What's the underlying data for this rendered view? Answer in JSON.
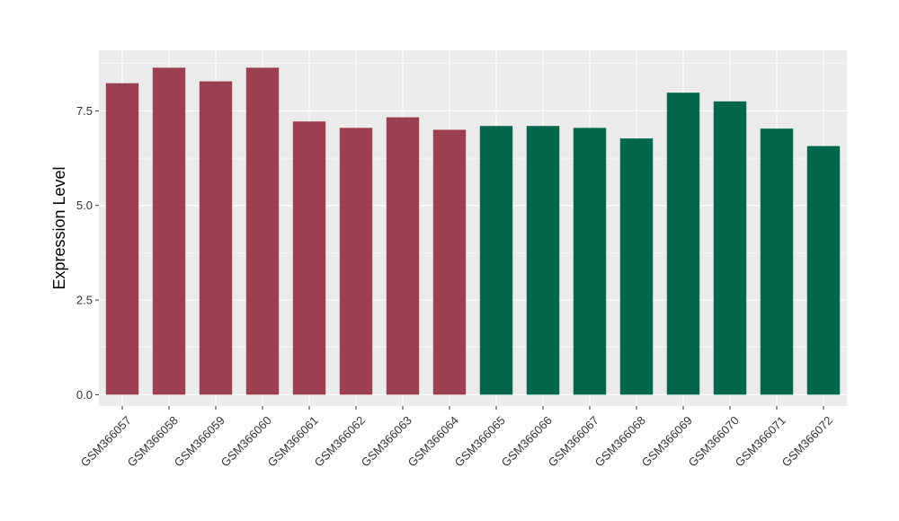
{
  "chart_data": {
    "type": "bar",
    "title": "",
    "xlabel": "",
    "ylabel": "Expression Level",
    "categories": [
      "GSM366057",
      "GSM366058",
      "GSM366059",
      "GSM366060",
      "GSM366061",
      "GSM366062",
      "GSM366063",
      "GSM366064",
      "GSM366065",
      "GSM366066",
      "GSM366067",
      "GSM366068",
      "GSM366069",
      "GSM366070",
      "GSM366071",
      "GSM366072"
    ],
    "values": [
      8.23,
      8.64,
      8.28,
      8.64,
      7.22,
      7.05,
      7.33,
      7.0,
      7.1,
      7.1,
      7.05,
      6.77,
      7.98,
      7.75,
      7.03,
      6.57
    ],
    "bar_colors": [
      "#9b404e",
      "#9b404e",
      "#9b404e",
      "#9b404e",
      "#9b404e",
      "#9b404e",
      "#9b404e",
      "#9b404e",
      "#02674a",
      "#02674a",
      "#02674a",
      "#02674a",
      "#02674a",
      "#02674a",
      "#02674a",
      "#02674a"
    ],
    "ylim": [
      -0.3,
      9.1
    ],
    "yticks": [
      0,
      2.5,
      5,
      7.5
    ],
    "ytick_labels": [
      "0.0",
      "2.5",
      "5.0",
      "7.5"
    ],
    "grid": true,
    "panel_background": "#ebebeb",
    "grid_color": "#ffffff",
    "legend": "none"
  }
}
